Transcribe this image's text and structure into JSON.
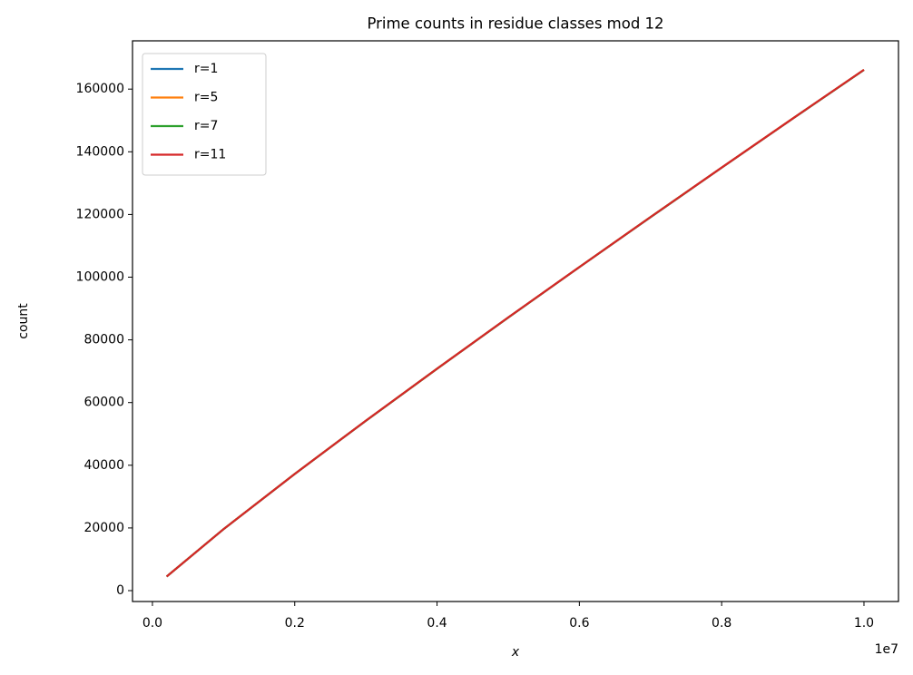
{
  "chart_data": {
    "type": "line",
    "title": "Prime counts in residue classes mod 12",
    "x_label": "x",
    "y_label": "count",
    "x_offset_label": "1e7",
    "x": [
      200000,
      1000000,
      2000000,
      3000000,
      4000000,
      5000000,
      6000000,
      7000000,
      8000000,
      9000000,
      10000000
    ],
    "series": [
      {
        "name": "r=1",
        "color": "#1f77b4",
        "values": [
          4480,
          19601,
          37211,
          54178,
          70760,
          87100,
          103180,
          119130,
          134910,
          150590,
          166110
        ]
      },
      {
        "name": "r=5",
        "color": "#ff7f0e",
        "values": [
          4500,
          19632,
          37240,
          54210,
          70790,
          87135,
          103220,
          119170,
          134950,
          150630,
          166150
        ]
      },
      {
        "name": "r=7",
        "color": "#2ca02c",
        "values": [
          4500,
          19628,
          37236,
          54206,
          70788,
          87130,
          103214,
          119164,
          134946,
          150624,
          166146
        ]
      },
      {
        "name": "r=11",
        "color": "#d62728",
        "values": [
          4502,
          19635,
          37244,
          54220,
          70806,
          87146,
          103233,
          119182,
          134968,
          150644,
          166171
        ]
      }
    ],
    "xlim": [
      -280000,
      10485000
    ],
    "ylim": [
      -3470,
      175400
    ],
    "xticks": [
      {
        "value": 0,
        "label": "0.0"
      },
      {
        "value": 2000000,
        "label": "0.2"
      },
      {
        "value": 4000000,
        "label": "0.4"
      },
      {
        "value": 6000000,
        "label": "0.6"
      },
      {
        "value": 8000000,
        "label": "0.8"
      },
      {
        "value": 10000000,
        "label": "1.0"
      }
    ],
    "yticks": [
      0,
      20000,
      40000,
      60000,
      80000,
      100000,
      120000,
      140000,
      160000
    ],
    "grid": false,
    "legend": "upper-left"
  }
}
